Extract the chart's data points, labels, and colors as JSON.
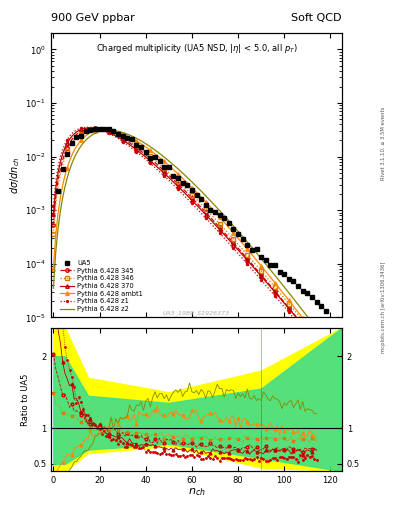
{
  "title_top": "900 GeV ppbar",
  "title_right": "Soft QCD",
  "plot_title": "Charged multiplicity (UA5 NSD, |\\eta| < 5.0, all p_{T})",
  "xlabel": "n_{ch}",
  "ylabel_main": "d\\sigma/dn_{ch}",
  "ylabel_ratio": "Ratio to UA5",
  "watermark": "UA5_1989_S1926373",
  "right_label_top": "Rivet 3.1.10, ≥ 3.5M events",
  "right_label_bot": "mcplots.cern.ch [arXiv:1306.3436]",
  "colors": {
    "UA5": "#000000",
    "345": "#cc0000",
    "346": "#dd7700",
    "370": "#bb0000",
    "ambt1": "#ff8800",
    "z1": "#cc0000",
    "z2": "#888800"
  },
  "band_yellow": "#ffff00",
  "band_green": "#44dd88",
  "ylim_main_log": [
    -5,
    0.3
  ],
  "ylim_ratio": [
    0.4,
    2.4
  ],
  "xlim": [
    0,
    130
  ],
  "ua5_mean": 26,
  "ua5_k": 4.2,
  "model_params": [
    {
      "mean": 24,
      "k": 3.8,
      "color": "#cc0000",
      "ls": "--",
      "marker": "o",
      "mfc": "none",
      "label": "Pythia 6.428 345"
    },
    {
      "mean": 25,
      "k": 4.0,
      "color": "#dd7700",
      "ls": ":",
      "marker": "s",
      "mfc": "none",
      "label": "Pythia 6.428 346"
    },
    {
      "mean": 23,
      "k": 3.5,
      "color": "#bb0000",
      "ls": "-",
      "marker": "^",
      "mfc": "none",
      "label": "Pythia 6.428 370"
    },
    {
      "mean": 28,
      "k": 5.0,
      "color": "#ff8800",
      "ls": "-",
      "marker": "^",
      "mfc": "#ff8800",
      "label": "Pythia 6.428 ambt1"
    },
    {
      "mean": 22,
      "k": 3.3,
      "color": "#cc0000",
      "ls": ":",
      "marker": ".",
      "mfc": "#cc0000",
      "label": "Pythia 6.428 z1"
    },
    {
      "mean": 30,
      "k": 5.5,
      "color": "#888800",
      "ls": "-",
      "marker": "none",
      "mfc": "none",
      "label": "Pythia 6.428 z2"
    }
  ]
}
